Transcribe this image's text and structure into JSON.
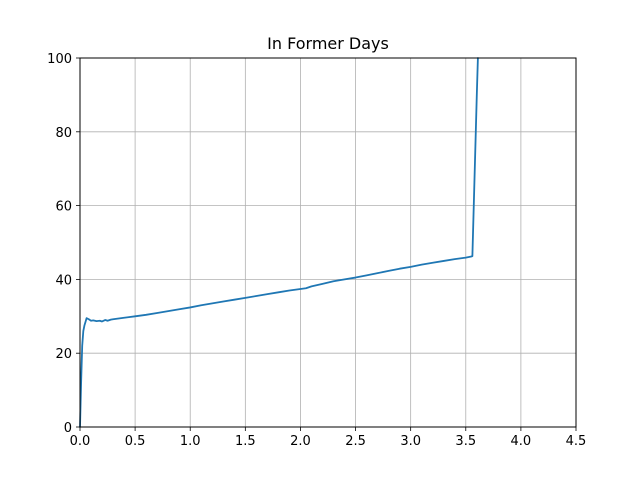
{
  "chart_data": {
    "type": "line",
    "title": "In Former Days",
    "xlabel": "",
    "ylabel": "",
    "xlim": [
      0.0,
      4.5
    ],
    "ylim": [
      0,
      100
    ],
    "x_ticks": [
      "0.0",
      "0.5",
      "1.0",
      "1.5",
      "2.0",
      "2.5",
      "3.0",
      "3.5",
      "4.0",
      "4.5"
    ],
    "y_ticks": [
      "0",
      "20",
      "40",
      "60",
      "80",
      "100"
    ],
    "grid": true,
    "legend": "none",
    "series": [
      {
        "color": "#1f77b4",
        "x": [
          0.0,
          0.01,
          0.02,
          0.03,
          0.04,
          0.05,
          0.06,
          0.08,
          0.1,
          0.12,
          0.15,
          0.18,
          0.2,
          0.23,
          0.25,
          0.28,
          0.3,
          0.35,
          0.4,
          0.5,
          0.6,
          0.7,
          0.8,
          0.9,
          1.0,
          1.1,
          1.2,
          1.3,
          1.4,
          1.5,
          1.6,
          1.7,
          1.8,
          1.9,
          2.0,
          2.05,
          2.1,
          2.2,
          2.3,
          2.4,
          2.5,
          2.6,
          2.7,
          2.8,
          2.9,
          3.0,
          3.1,
          3.2,
          3.3,
          3.4,
          3.5,
          3.55,
          3.56,
          3.6,
          3.61
        ],
        "y": [
          0.0,
          12.0,
          22.0,
          26.0,
          27.5,
          28.5,
          29.5,
          29.2,
          28.8,
          28.9,
          28.7,
          28.8,
          28.6,
          29.0,
          28.8,
          29.1,
          29.2,
          29.4,
          29.6,
          30.0,
          30.4,
          30.9,
          31.4,
          31.9,
          32.4,
          33.0,
          33.5,
          34.0,
          34.5,
          35.0,
          35.5,
          36.0,
          36.5,
          37.0,
          37.4,
          37.6,
          38.1,
          38.8,
          39.5,
          40.0,
          40.5,
          41.1,
          41.7,
          42.3,
          42.9,
          43.4,
          44.0,
          44.5,
          45.0,
          45.5,
          45.9,
          46.2,
          46.3,
          90.0,
          100.0
        ]
      }
    ]
  }
}
